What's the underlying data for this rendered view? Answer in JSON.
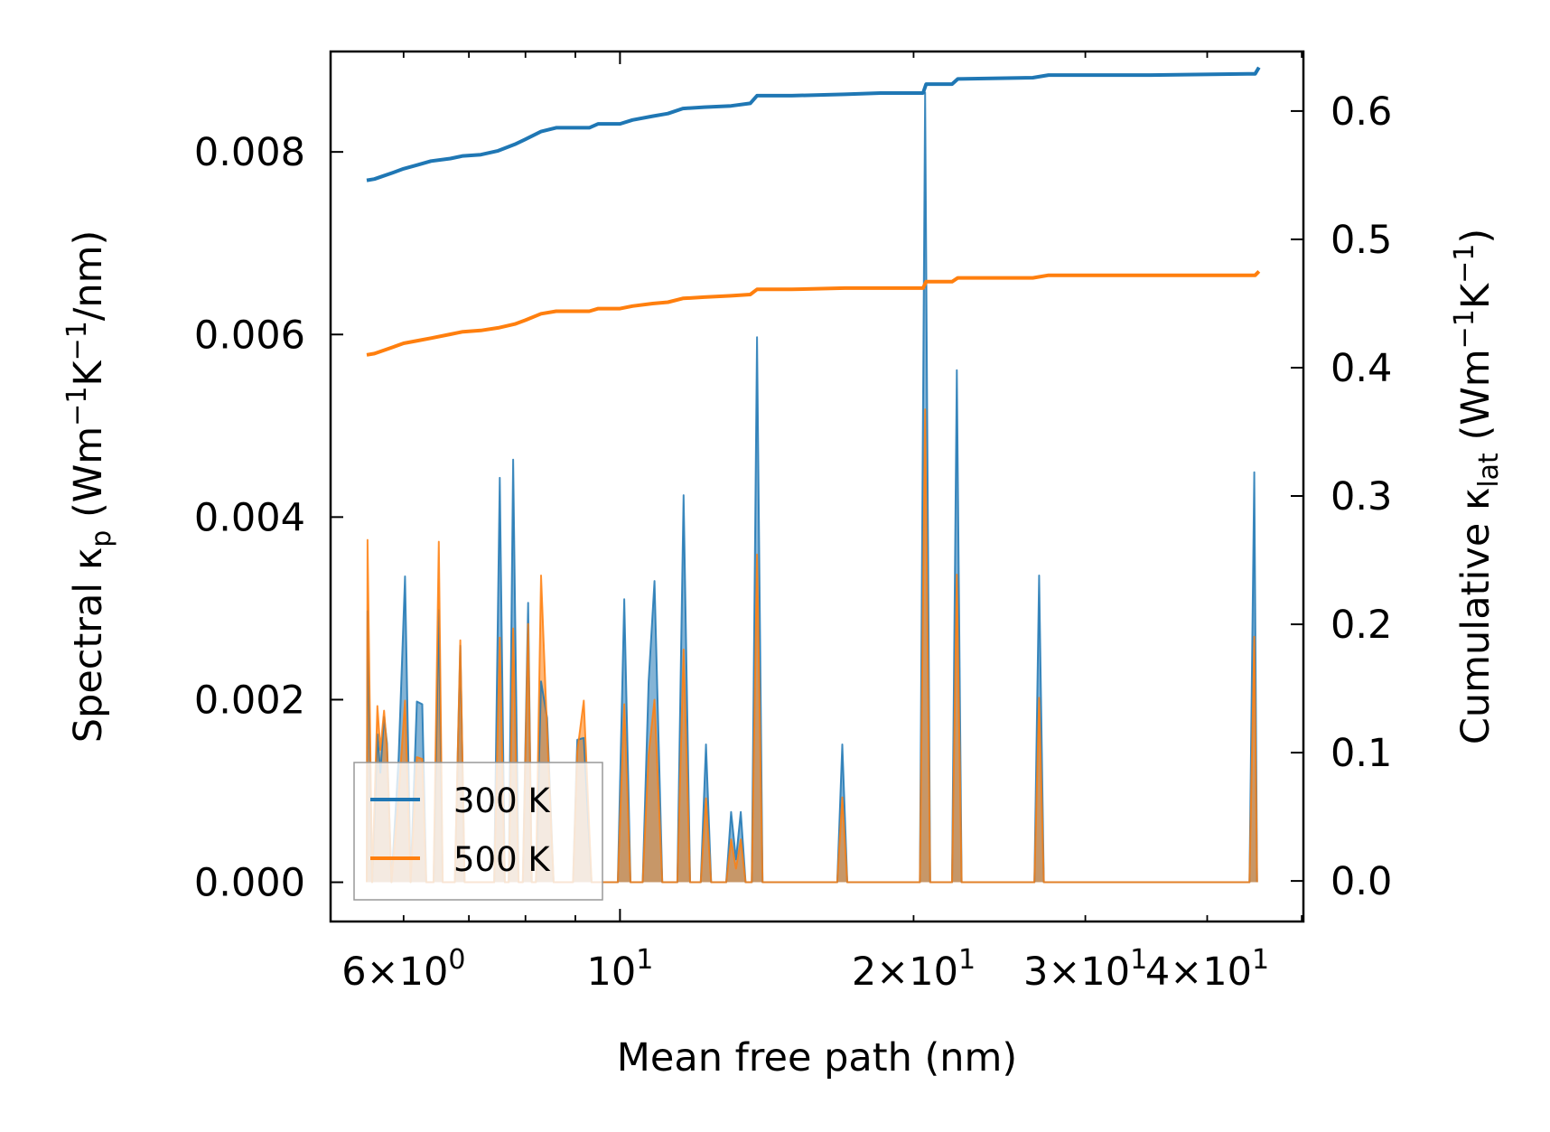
{
  "chart_data": {
    "type": "line",
    "xscale": "log",
    "xlabel": "Mean free path (nm)",
    "ylabel_left": {
      "main": "Spectral κ",
      "sub": "p",
      "unit_open": " (Wm",
      "exp1": "−1",
      "mid": "K",
      "exp2": "−1",
      "unit_close": "/nm)"
    },
    "ylabel_right": {
      "main": "Cumulative κ",
      "sub": "lat",
      "unit_open": " (Wm",
      "exp1": "−1",
      "mid": "K",
      "exp2": "−1",
      "unit_close": ")"
    },
    "xlim": [
      5.05,
      50.2
    ],
    "ylim_left": [
      -0.00043,
      0.0091
    ],
    "ylim_right": [
      -0.0316,
      0.6464
    ],
    "x_ticks": [
      {
        "value": 6,
        "mant": "6",
        "times": "×",
        "base": "10",
        "exp": "0"
      },
      {
        "value": 10,
        "mant": "",
        "times": "",
        "base": "10",
        "exp": "1"
      },
      {
        "value": 20,
        "mant": "2",
        "times": "×",
        "base": "10",
        "exp": "1"
      },
      {
        "value": 30,
        "mant": "3",
        "times": "×",
        "base": "10",
        "exp": "1"
      },
      {
        "value": 40,
        "mant": "4",
        "times": "×",
        "base": "10",
        "exp": "1"
      }
    ],
    "y_left_ticks": [
      {
        "value": 0,
        "label": "0.000"
      },
      {
        "value": 0.002,
        "label": "0.002"
      },
      {
        "value": 0.004,
        "label": "0.004"
      },
      {
        "value": 0.006,
        "label": "0.006"
      },
      {
        "value": 0.008,
        "label": "0.008"
      }
    ],
    "y_right_ticks": [
      {
        "value": 0.0,
        "label": "0.0"
      },
      {
        "value": 0.1,
        "label": "0.1"
      },
      {
        "value": 0.2,
        "label": "0.2"
      },
      {
        "value": 0.3,
        "label": "0.3"
      },
      {
        "value": 0.4,
        "label": "0.4"
      },
      {
        "value": 0.5,
        "label": "0.5"
      },
      {
        "value": 0.6,
        "label": "0.6"
      }
    ],
    "legend": {
      "position": "lower-left",
      "entries": [
        "300 K",
        "500 K"
      ]
    },
    "series": [
      {
        "name": "300 K",
        "color": "#1f77b4",
        "spectral": [
          [
            5.5,
            0
          ],
          [
            5.51,
            0.00297
          ],
          [
            5.57,
            0
          ],
          [
            5.64,
            0.00162
          ],
          [
            5.68,
            0.0012
          ],
          [
            5.73,
            0.00181
          ],
          [
            5.77,
            0.00152
          ],
          [
            5.83,
            0
          ],
          [
            5.93,
            0.00136
          ],
          [
            6.02,
            0.00335
          ],
          [
            6.1,
            0
          ],
          [
            6.19,
            0.00198
          ],
          [
            6.27,
            0.00195
          ],
          [
            6.33,
            0
          ],
          [
            6.44,
            0
          ],
          [
            6.52,
            0.00298
          ],
          [
            6.58,
            0
          ],
          [
            6.77,
            0
          ],
          [
            6.86,
            0.00259
          ],
          [
            6.93,
            0
          ],
          [
            7.43,
            0
          ],
          [
            7.53,
            0.00443
          ],
          [
            7.62,
            0
          ],
          [
            7.69,
            0
          ],
          [
            7.77,
            0.00463
          ],
          [
            7.87,
            0
          ],
          [
            7.95,
            0
          ],
          [
            8.05,
            0.00306
          ],
          [
            8.12,
            0
          ],
          [
            8.2,
            0
          ],
          [
            8.3,
            0.0022
          ],
          [
            8.42,
            0.0018
          ],
          [
            8.55,
            0
          ],
          [
            8.95,
            0
          ],
          [
            9.04,
            0.00156
          ],
          [
            9.18,
            0.00158
          ],
          [
            9.35,
            0
          ],
          [
            9.95,
            0
          ],
          [
            10.1,
            0.0031
          ],
          [
            10.25,
            0
          ],
          [
            10.55,
            0
          ],
          [
            10.7,
            0.0022
          ],
          [
            10.85,
            0.0033
          ],
          [
            11.05,
            0
          ],
          [
            11.45,
            0
          ],
          [
            11.62,
            0.00424
          ],
          [
            11.8,
            0
          ],
          [
            12.1,
            0
          ],
          [
            12.25,
            0.00151
          ],
          [
            12.4,
            0
          ],
          [
            12.85,
            0
          ],
          [
            13.0,
            0.00077
          ],
          [
            13.15,
            0.00025
          ],
          [
            13.3,
            0.00077
          ],
          [
            13.45,
            0
          ],
          [
            13.65,
            0
          ],
          [
            13.82,
            0.00597
          ],
          [
            14.0,
            0
          ],
          [
            16.7,
            0
          ],
          [
            16.9,
            0.00151
          ],
          [
            17.1,
            0
          ],
          [
            20.3,
            0
          ],
          [
            20.55,
            0.00865
          ],
          [
            20.8,
            0
          ],
          [
            21.9,
            0
          ],
          [
            22.15,
            0.00561
          ],
          [
            22.4,
            0
          ],
          [
            26.6,
            0
          ],
          [
            26.9,
            0.00336
          ],
          [
            27.2,
            0
          ],
          [
            44.2,
            0
          ],
          [
            44.7,
            0.00449
          ],
          [
            45.0,
            0
          ]
        ],
        "cumulative": [
          [
            5.5,
            0.546
          ],
          [
            5.6,
            0.547
          ],
          [
            5.7,
            0.549
          ],
          [
            5.85,
            0.552
          ],
          [
            6.0,
            0.555
          ],
          [
            6.2,
            0.558
          ],
          [
            6.4,
            0.561
          ],
          [
            6.7,
            0.563
          ],
          [
            6.9,
            0.565
          ],
          [
            7.2,
            0.566
          ],
          [
            7.5,
            0.569
          ],
          [
            7.8,
            0.574
          ],
          [
            8.0,
            0.578
          ],
          [
            8.3,
            0.584
          ],
          [
            8.6,
            0.587
          ],
          [
            9.3,
            0.587
          ],
          [
            9.5,
            0.59
          ],
          [
            10.0,
            0.59
          ],
          [
            10.3,
            0.593
          ],
          [
            10.8,
            0.596
          ],
          [
            11.2,
            0.598
          ],
          [
            11.6,
            0.602
          ],
          [
            12.2,
            0.603
          ],
          [
            13.0,
            0.604
          ],
          [
            13.6,
            0.606
          ],
          [
            13.82,
            0.612
          ],
          [
            15.0,
            0.612
          ],
          [
            17.0,
            0.613
          ],
          [
            18.5,
            0.614
          ],
          [
            20.45,
            0.614
          ],
          [
            20.6,
            0.621
          ],
          [
            21.9,
            0.621
          ],
          [
            22.2,
            0.625
          ],
          [
            26.5,
            0.626
          ],
          [
            27.5,
            0.628
          ],
          [
            35.0,
            0.628
          ],
          [
            44.0,
            0.629
          ],
          [
            44.8,
            0.629
          ],
          [
            45.2,
            0.634
          ]
        ]
      },
      {
        "name": "500 K",
        "color": "#ff7f0e",
        "spectral": [
          [
            5.5,
            0
          ],
          [
            5.51,
            0.00375
          ],
          [
            5.57,
            0
          ],
          [
            5.64,
            0.00193
          ],
          [
            5.68,
            0.00145
          ],
          [
            5.73,
            0.00188
          ],
          [
            5.77,
            0.00145
          ],
          [
            5.83,
            0
          ],
          [
            5.93,
            0.00095
          ],
          [
            6.02,
            0.00199
          ],
          [
            6.1,
            0
          ],
          [
            6.19,
            0.00137
          ],
          [
            6.27,
            0.00135
          ],
          [
            6.33,
            0
          ],
          [
            6.44,
            0
          ],
          [
            6.52,
            0.00373
          ],
          [
            6.58,
            0
          ],
          [
            6.77,
            0
          ],
          [
            6.86,
            0.00265
          ],
          [
            6.93,
            0
          ],
          [
            7.43,
            0
          ],
          [
            7.53,
            0.00268
          ],
          [
            7.62,
            0
          ],
          [
            7.69,
            0
          ],
          [
            7.77,
            0.00278
          ],
          [
            7.87,
            0
          ],
          [
            7.95,
            0
          ],
          [
            8.05,
            0.00283
          ],
          [
            8.12,
            0
          ],
          [
            8.2,
            0
          ],
          [
            8.3,
            0.00336
          ],
          [
            8.42,
            0.00165
          ],
          [
            8.55,
            0
          ],
          [
            8.95,
            0
          ],
          [
            9.04,
            0.00143
          ],
          [
            9.18,
            0.00199
          ],
          [
            9.35,
            0
          ],
          [
            9.95,
            0
          ],
          [
            10.1,
            0.00195
          ],
          [
            10.25,
            0
          ],
          [
            10.55,
            0
          ],
          [
            10.7,
            0.0014
          ],
          [
            10.85,
            0.002
          ],
          [
            11.05,
            0
          ],
          [
            11.45,
            0
          ],
          [
            11.62,
            0.00255
          ],
          [
            11.8,
            0
          ],
          [
            12.1,
            0
          ],
          [
            12.25,
            0.00092
          ],
          [
            12.4,
            0
          ],
          [
            12.85,
            0
          ],
          [
            13.0,
            0.00047
          ],
          [
            13.15,
            0.00015
          ],
          [
            13.3,
            0.00047
          ],
          [
            13.45,
            0
          ],
          [
            13.65,
            0
          ],
          [
            13.82,
            0.00359
          ],
          [
            14.0,
            0
          ],
          [
            16.7,
            0
          ],
          [
            16.9,
            0.00093
          ],
          [
            17.1,
            0
          ],
          [
            20.3,
            0
          ],
          [
            20.55,
            0.00518
          ],
          [
            20.8,
            0
          ],
          [
            21.9,
            0
          ],
          [
            22.15,
            0.00337
          ],
          [
            22.4,
            0
          ],
          [
            26.6,
            0
          ],
          [
            26.9,
            0.00202
          ],
          [
            27.2,
            0
          ],
          [
            44.2,
            0
          ],
          [
            44.7,
            0.00269
          ],
          [
            45.0,
            0
          ]
        ],
        "cumulative": [
          [
            5.5,
            0.41
          ],
          [
            5.6,
            0.411
          ],
          [
            5.7,
            0.413
          ],
          [
            5.85,
            0.416
          ],
          [
            6.0,
            0.419
          ],
          [
            6.2,
            0.421
          ],
          [
            6.4,
            0.423
          ],
          [
            6.7,
            0.426
          ],
          [
            6.9,
            0.428
          ],
          [
            7.2,
            0.429
          ],
          [
            7.5,
            0.431
          ],
          [
            7.8,
            0.434
          ],
          [
            8.0,
            0.437
          ],
          [
            8.3,
            0.442
          ],
          [
            8.6,
            0.444
          ],
          [
            9.3,
            0.444
          ],
          [
            9.5,
            0.446
          ],
          [
            10.0,
            0.446
          ],
          [
            10.3,
            0.448
          ],
          [
            10.8,
            0.45
          ],
          [
            11.2,
            0.451
          ],
          [
            11.6,
            0.454
          ],
          [
            12.2,
            0.455
          ],
          [
            13.0,
            0.456
          ],
          [
            13.6,
            0.457
          ],
          [
            13.82,
            0.461
          ],
          [
            15.0,
            0.461
          ],
          [
            17.0,
            0.462
          ],
          [
            18.5,
            0.462
          ],
          [
            20.45,
            0.462
          ],
          [
            20.6,
            0.467
          ],
          [
            21.9,
            0.467
          ],
          [
            22.2,
            0.47
          ],
          [
            26.5,
            0.47
          ],
          [
            27.5,
            0.472
          ],
          [
            35.0,
            0.472
          ],
          [
            44.0,
            0.472
          ],
          [
            44.8,
            0.472
          ],
          [
            45.2,
            0.475
          ]
        ]
      }
    ]
  }
}
